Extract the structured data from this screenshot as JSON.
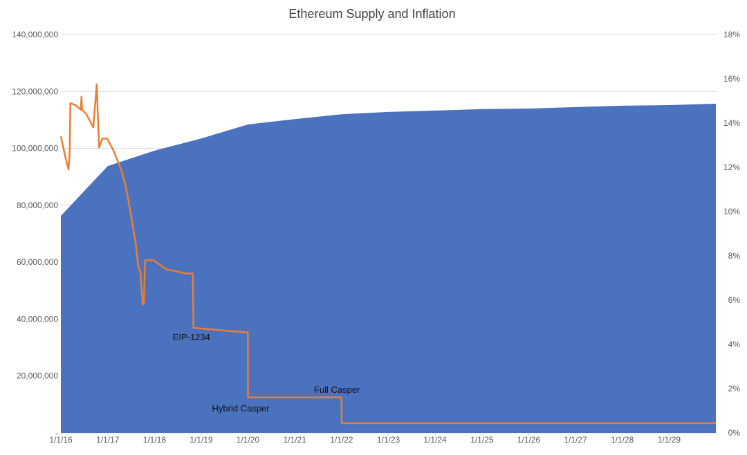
{
  "chart_data": {
    "type": "area+line",
    "title": "Ethereum Supply and Inflation",
    "colors": {
      "supply": "#4a72bf",
      "inflation": "#ed7d31",
      "grid": "#d9d9d9"
    },
    "grid": true,
    "x_ticks": [
      "1/1/16",
      "1/1/17",
      "1/1/18",
      "1/1/19",
      "1/1/20",
      "1/1/21",
      "1/1/22",
      "1/1/23",
      "1/1/24",
      "1/1/25",
      "1/1/26",
      "1/1/27",
      "1/1/28",
      "1/1/29"
    ],
    "xlim": [
      "2016-01-01",
      "2030-01-01"
    ],
    "y_left": {
      "lim": [
        0,
        140000000
      ],
      "ticks": [
        "-",
        "20,000,000",
        "40,000,000",
        "60,000,000",
        "80,000,000",
        "100,000,000",
        "120,000,000",
        "140,000,000"
      ]
    },
    "y_right": {
      "lim": [
        0,
        18
      ],
      "ticks": [
        "0%",
        "2%",
        "4%",
        "6%",
        "8%",
        "10%",
        "12%",
        "14%",
        "16%",
        "18%"
      ]
    },
    "series": [
      {
        "kind": "area",
        "axis": "left",
        "points": [
          [
            "2016-01-01",
            76300000
          ],
          [
            "2017-01-01",
            93800000
          ],
          [
            "2018-01-01",
            99200000
          ],
          [
            "2019-01-01",
            103500000
          ],
          [
            "2020-01-01",
            108400000
          ],
          [
            "2021-01-01",
            110300000
          ],
          [
            "2022-01-01",
            112000000
          ],
          [
            "2023-01-01",
            112800000
          ],
          [
            "2024-01-01",
            113300000
          ],
          [
            "2025-01-01",
            113800000
          ],
          [
            "2026-01-01",
            114000000
          ],
          [
            "2027-01-01",
            114500000
          ],
          [
            "2028-01-01",
            115000000
          ],
          [
            "2029-01-01",
            115200000
          ],
          [
            "2029-12-31",
            115700000
          ]
        ]
      },
      {
        "kind": "line",
        "axis": "right",
        "points": [
          [
            "2016-01-01",
            13.4
          ],
          [
            "2016-02-08",
            12.4
          ],
          [
            "2016-03-01",
            11.9
          ],
          [
            "2016-03-10",
            12.7
          ],
          [
            "2016-03-15",
            14.9
          ],
          [
            "2016-04-28",
            14.8
          ],
          [
            "2016-06-05",
            14.6
          ],
          [
            "2016-06-10",
            15.2
          ],
          [
            "2016-06-15",
            14.6
          ],
          [
            "2016-07-18",
            14.4
          ],
          [
            "2016-08-15",
            14.1
          ],
          [
            "2016-09-10",
            13.8
          ],
          [
            "2016-10-07",
            15.75
          ],
          [
            "2016-10-25",
            12.9
          ],
          [
            "2016-11-20",
            13.3
          ],
          [
            "2016-12-28",
            13.3
          ],
          [
            "2017-02-20",
            12.7
          ],
          [
            "2017-04-15",
            11.9
          ],
          [
            "2017-05-20",
            11.2
          ],
          [
            "2017-06-24",
            10.1
          ],
          [
            "2017-08-06",
            8.6
          ],
          [
            "2017-08-28",
            7.5
          ],
          [
            "2017-09-12",
            7.3
          ],
          [
            "2017-10-01",
            5.8
          ],
          [
            "2017-10-10",
            5.9
          ],
          [
            "2017-10-20",
            7.8
          ],
          [
            "2017-12-25",
            7.8
          ],
          [
            "2018-04-01",
            7.4
          ],
          [
            "2018-09-10",
            7.2
          ],
          [
            "2018-10-28",
            7.2
          ],
          [
            "2018-11-01",
            4.75
          ],
          [
            "2019-12-31",
            4.53
          ],
          [
            "2020-01-01",
            1.6
          ],
          [
            "2021-12-31",
            1.6
          ],
          [
            "2022-01-01",
            0.44
          ],
          [
            "2029-12-31",
            0.44
          ]
        ]
      }
    ],
    "annotations": [
      {
        "text": "EIP-1234",
        "at": [
          "2018-11-01",
          4.75
        ]
      },
      {
        "text": "Hybrid Casper",
        "at": [
          "2020-01-01",
          1.6
        ]
      },
      {
        "text": "Full Casper",
        "at": [
          "2022-01-01",
          1.6
        ]
      }
    ]
  }
}
